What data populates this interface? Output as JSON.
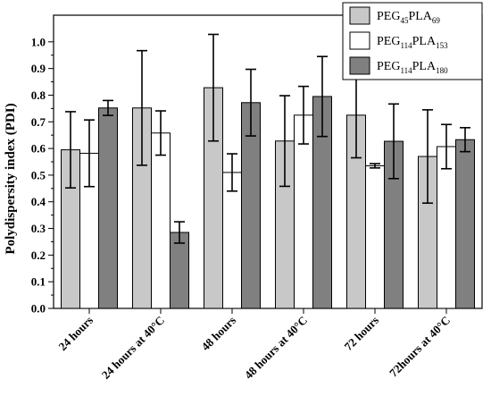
{
  "chart_data": {
    "type": "bar",
    "ylabel": "Polydispersity index (PDI)",
    "ylim": [
      0.0,
      1.1
    ],
    "yticks": [
      "0.0",
      "0.1",
      "0.2",
      "0.3",
      "0.4",
      "0.5",
      "0.6",
      "0.7",
      "0.8",
      "0.9",
      "1.0"
    ],
    "categories": [
      "24 hours",
      "24 hours at 40°C",
      "48 hours",
      "48 hours at 40°C",
      "72 hours",
      "72hours at 40°C"
    ],
    "grid": false,
    "legend_position": "top-right",
    "series": [
      {
        "name": "PEG45PLA69",
        "legend_parts": [
          [
            "PEG",
            ""
          ],
          [
            "45",
            "sub"
          ],
          [
            "PLA",
            ""
          ],
          [
            "69",
            "sub"
          ]
        ],
        "color": "#c8c8c8",
        "values": [
          0.595,
          0.752,
          0.828,
          0.628,
          0.725,
          0.57
        ],
        "errors": [
          0.143,
          0.215,
          0.2,
          0.17,
          0.16,
          0.175
        ]
      },
      {
        "name": "PEG114PLA153",
        "legend_parts": [
          [
            "PEG",
            ""
          ],
          [
            "114",
            "sub"
          ],
          [
            "PLA",
            ""
          ],
          [
            "153",
            "sub"
          ]
        ],
        "color": "#ffffff",
        "values": [
          0.582,
          0.658,
          0.51,
          0.725,
          0.535,
          0.607
        ],
        "errors": [
          0.125,
          0.083,
          0.07,
          0.108,
          0.008,
          0.083
        ]
      },
      {
        "name": "PEG114PLA180",
        "legend_parts": [
          [
            "PEG",
            ""
          ],
          [
            "114",
            "sub"
          ],
          [
            "PLA",
            ""
          ],
          [
            "180",
            "sub"
          ]
        ],
        "color": "#808080",
        "values": [
          0.752,
          0.285,
          0.772,
          0.795,
          0.627,
          0.633
        ],
        "errors": [
          0.028,
          0.04,
          0.125,
          0.15,
          0.14,
          0.045
        ]
      }
    ]
  }
}
